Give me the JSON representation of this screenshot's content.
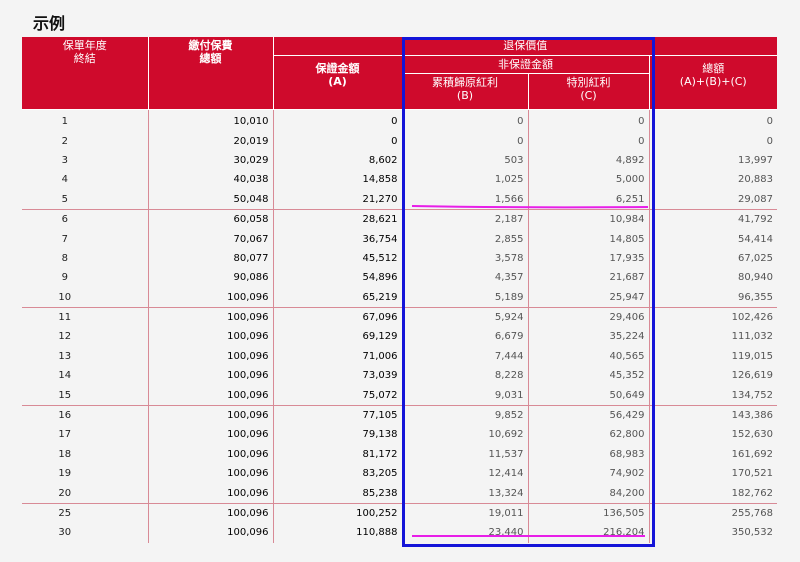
{
  "title": "示例",
  "header": {
    "col0": "保單年度\n終結",
    "col1": "繳付保費\n總額",
    "surrender_value": "退保價值",
    "guaranteed": "保證金額\n(A)",
    "non_guaranteed": "非保證金額",
    "reversionary": "累積歸原紅利\n(B)",
    "special": "特別紅利\n(C)",
    "total": "總額\n(A)+(B)+(C)"
  },
  "rows": [
    [
      "1",
      "10,010",
      "0",
      "0",
      "0",
      "0"
    ],
    [
      "2",
      "20,019",
      "0",
      "0",
      "0",
      "0"
    ],
    [
      "3",
      "30,029",
      "8,602",
      "503",
      "4,892",
      "13,997"
    ],
    [
      "4",
      "40,038",
      "14,858",
      "1,025",
      "5,000",
      "20,883"
    ],
    [
      "5",
      "50,048",
      "21,270",
      "1,566",
      "6,251",
      "29,087"
    ],
    [
      "6",
      "60,058",
      "28,621",
      "2,187",
      "10,984",
      "41,792"
    ],
    [
      "7",
      "70,067",
      "36,754",
      "2,855",
      "14,805",
      "54,414"
    ],
    [
      "8",
      "80,077",
      "45,512",
      "3,578",
      "17,935",
      "67,025"
    ],
    [
      "9",
      "90,086",
      "54,896",
      "4,357",
      "21,687",
      "80,940"
    ],
    [
      "10",
      "100,096",
      "65,219",
      "5,189",
      "25,947",
      "96,355"
    ],
    [
      "11",
      "100,096",
      "67,096",
      "5,924",
      "29,406",
      "102,426"
    ],
    [
      "12",
      "100,096",
      "69,129",
      "6,679",
      "35,224",
      "111,032"
    ],
    [
      "13",
      "100,096",
      "71,006",
      "7,444",
      "40,565",
      "119,015"
    ],
    [
      "14",
      "100,096",
      "73,039",
      "8,228",
      "45,352",
      "126,619"
    ],
    [
      "15",
      "100,096",
      "75,072",
      "9,031",
      "50,649",
      "134,752"
    ],
    [
      "16",
      "100,096",
      "77,105",
      "9,852",
      "56,429",
      "143,386"
    ],
    [
      "17",
      "100,096",
      "79,138",
      "10,692",
      "62,800",
      "152,630"
    ],
    [
      "18",
      "100,096",
      "81,172",
      "11,537",
      "68,983",
      "161,692"
    ],
    [
      "19",
      "100,096",
      "83,205",
      "12,414",
      "74,902",
      "170,521"
    ],
    [
      "20",
      "100,096",
      "85,238",
      "13,324",
      "84,200",
      "182,762"
    ],
    [
      "25",
      "100,096",
      "100,252",
      "19,011",
      "136,505",
      "255,768"
    ],
    [
      "30",
      "100,096",
      "110,888",
      "23,440",
      "216,204",
      "350,532"
    ]
  ],
  "colors": {
    "header_red": "#cf0a2c",
    "highlight_box": "#1414d8",
    "underline": "#e81ee8"
  }
}
